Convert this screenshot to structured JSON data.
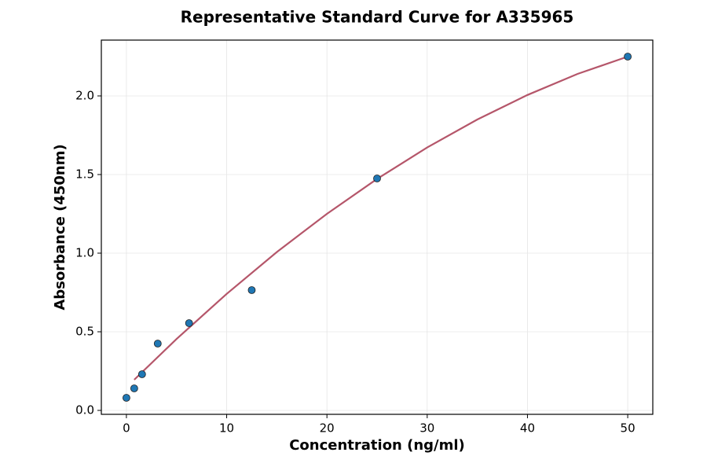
{
  "chart_data": {
    "type": "scatter",
    "title": "Representative Standard Curve for A335965",
    "x_label": "Concentration (ng/ml)",
    "y_label": "Absorbance (450nm)",
    "xlim": [
      -2.5,
      52.5
    ],
    "ylim": [
      -0.025,
      2.355
    ],
    "xticks": [
      0,
      10,
      20,
      30,
      40,
      50
    ],
    "yticks": [
      {
        "value": 0,
        "label": "0.0"
      },
      0.5,
      {
        "value": 1,
        "label": "1.0"
      },
      1.5,
      {
        "value": 2,
        "label": "2.0"
      }
    ],
    "grid": true,
    "series": [
      {
        "type": "line",
        "color": "#b5566a",
        "x": [
          0.78,
          5,
          10,
          15,
          20,
          25,
          30,
          35,
          40,
          45,
          50
        ],
        "values": [
          0.195,
          0.454,
          0.741,
          1.007,
          1.25,
          1.472,
          1.672,
          1.85,
          2.006,
          2.14,
          2.25
        ]
      },
      {
        "type": "scatter",
        "color": "#1f77b4",
        "x": [
          0,
          0.78,
          1.56,
          3.125,
          6.25,
          12.5,
          25,
          50
        ],
        "values": [
          0.08,
          0.14,
          0.23,
          0.425,
          0.555,
          0.765,
          1.475,
          2.25
        ]
      }
    ]
  }
}
